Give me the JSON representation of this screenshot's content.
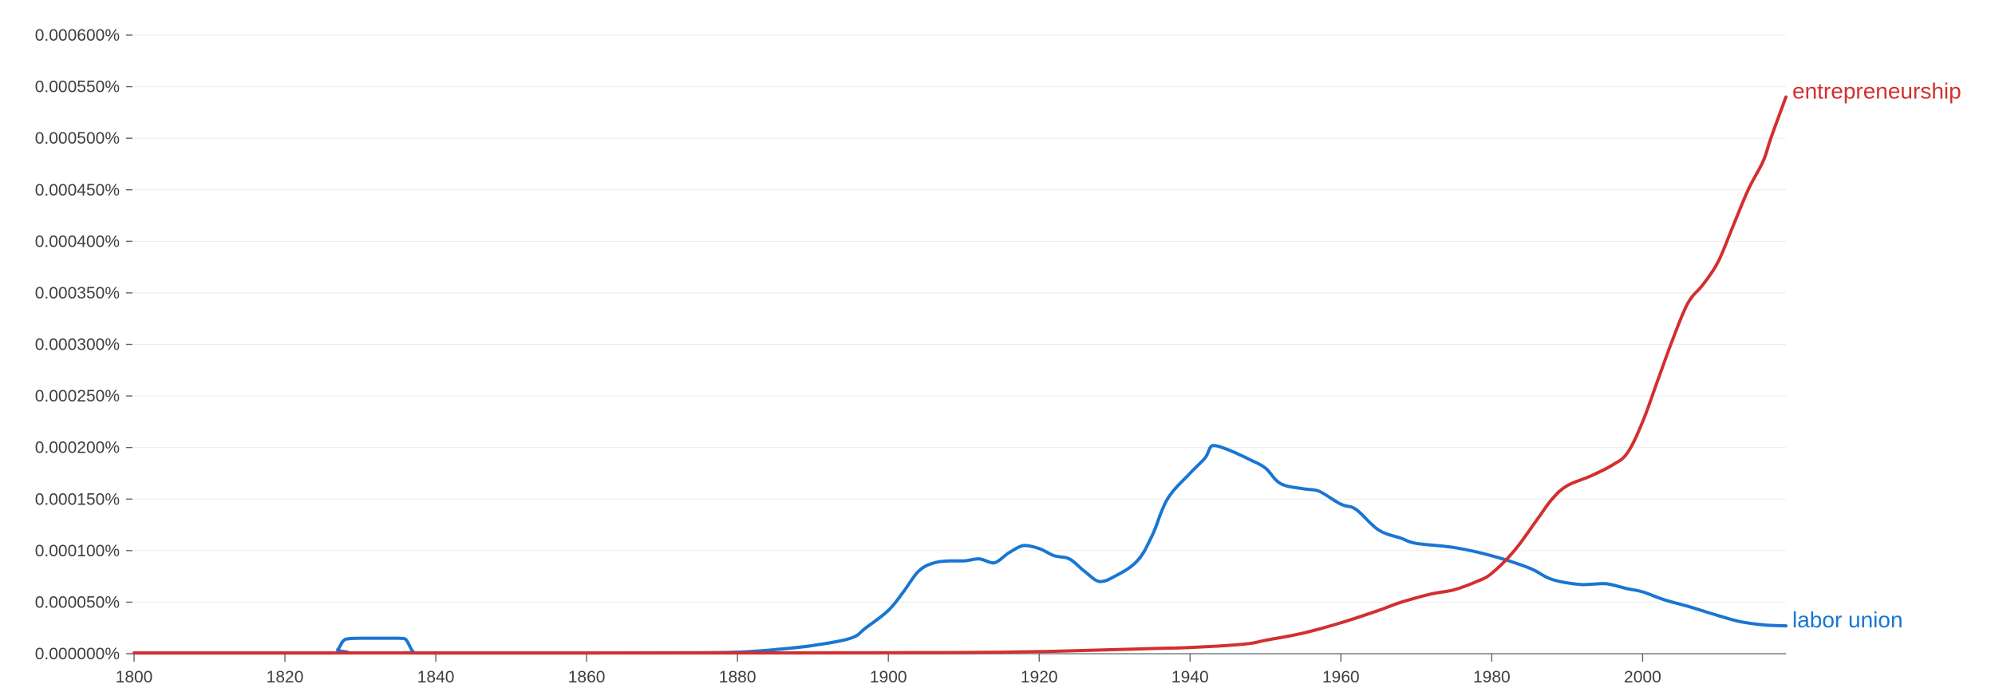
{
  "chart_data": {
    "type": "line",
    "title": "",
    "xlabel": "",
    "ylabel": "",
    "xlim": [
      1800,
      2019
    ],
    "ylim": [
      0,
      0.0006
    ],
    "grid": true,
    "legend": "none",
    "x_ticks": [
      1800,
      1820,
      1840,
      1860,
      1880,
      1900,
      1920,
      1940,
      1960,
      1980,
      2000
    ],
    "x_tick_labels": [
      "1800",
      "1820",
      "1840",
      "1860",
      "1880",
      "1900",
      "1920",
      "1940",
      "1960",
      "1980",
      "2000"
    ],
    "y_ticks": [
      0,
      5e-05,
      0.0001,
      0.00015,
      0.0002,
      0.00025,
      0.0003,
      0.00035,
      0.0004,
      0.00045,
      0.0005,
      0.00055,
      0.0006
    ],
    "y_tick_labels": [
      "0.000000%",
      "0.000050%",
      "0.000100%",
      "0.000150%",
      "0.000200%",
      "0.000250%",
      "0.000300%",
      "0.000350%",
      "0.000400%",
      "0.000450%",
      "0.000500%",
      "0.000550%",
      "0.000600%"
    ],
    "series": [
      {
        "name": "entrepreneurship",
        "color": "#d32f2f",
        "points": [
          [
            1800,
            8e-07
          ],
          [
            1820,
            8e-07
          ],
          [
            1840,
            8e-07
          ],
          [
            1860,
            8e-07
          ],
          [
            1880,
            8e-07
          ],
          [
            1900,
            1e-06
          ],
          [
            1910,
            1.2e-06
          ],
          [
            1920,
            2e-06
          ],
          [
            1930,
            4e-06
          ],
          [
            1935,
            5e-06
          ],
          [
            1940,
            6e-06
          ],
          [
            1945,
            8e-06
          ],
          [
            1948,
            1e-05
          ],
          [
            1950,
            1.3e-05
          ],
          [
            1955,
            2e-05
          ],
          [
            1960,
            3e-05
          ],
          [
            1965,
            4.2e-05
          ],
          [
            1968,
            5e-05
          ],
          [
            1972,
            5.8e-05
          ],
          [
            1975,
            6.2e-05
          ],
          [
            1978,
            7e-05
          ],
          [
            1980,
            7.8e-05
          ],
          [
            1983,
            0.0001
          ],
          [
            1986,
            0.00013
          ],
          [
            1988,
            0.00015
          ],
          [
            1990,
            0.000163
          ],
          [
            1993,
            0.000172
          ],
          [
            1996,
            0.000183
          ],
          [
            1998,
            0.000195
          ],
          [
            2000,
            0.000225
          ],
          [
            2002,
            0.000265
          ],
          [
            2004,
            0.000305
          ],
          [
            2006,
            0.00034
          ],
          [
            2008,
            0.000358
          ],
          [
            2010,
            0.00038
          ],
          [
            2012,
            0.000415
          ],
          [
            2014,
            0.00045
          ],
          [
            2016,
            0.000478
          ],
          [
            2017,
            0.0005
          ],
          [
            2019,
            0.00054
          ]
        ]
      },
      {
        "name": "labor union",
        "color": "#1976d2",
        "points": [
          [
            1800,
            7e-07
          ],
          [
            1826,
            7e-07
          ],
          [
            1827,
            4e-06
          ],
          [
            1828,
            1.4e-05
          ],
          [
            1830,
            1.5e-05
          ],
          [
            1835,
            1.5e-05
          ],
          [
            1836,
            1.4e-05
          ],
          [
            1837,
            2e-06
          ],
          [
            1838,
            7e-07
          ],
          [
            1860,
            7e-07
          ],
          [
            1875,
            1e-06
          ],
          [
            1880,
            1.5e-06
          ],
          [
            1885,
            4e-06
          ],
          [
            1890,
            8e-06
          ],
          [
            1895,
            1.5e-05
          ],
          [
            1897,
            2.5e-05
          ],
          [
            1900,
            4.2e-05
          ],
          [
            1902,
            6e-05
          ],
          [
            1904,
            8e-05
          ],
          [
            1906,
            8.8e-05
          ],
          [
            1908,
            9e-05
          ],
          [
            1910,
            9e-05
          ],
          [
            1912,
            9.2e-05
          ],
          [
            1914,
            8.8e-05
          ],
          [
            1916,
            9.8e-05
          ],
          [
            1918,
            0.000105
          ],
          [
            1920,
            0.000102
          ],
          [
            1922,
            9.5e-05
          ],
          [
            1924,
            9.2e-05
          ],
          [
            1926,
            8e-05
          ],
          [
            1928,
            7e-05
          ],
          [
            1930,
            7.5e-05
          ],
          [
            1933,
            9e-05
          ],
          [
            1935,
            0.000115
          ],
          [
            1937,
            0.00015
          ],
          [
            1940,
            0.000175
          ],
          [
            1942,
            0.00019
          ],
          [
            1943,
            0.000202
          ],
          [
            1945,
            0.000198
          ],
          [
            1948,
            0.000188
          ],
          [
            1950,
            0.00018
          ],
          [
            1952,
            0.000165
          ],
          [
            1955,
            0.00016
          ],
          [
            1957,
            0.000158
          ],
          [
            1960,
            0.000145
          ],
          [
            1962,
            0.00014
          ],
          [
            1965,
            0.00012
          ],
          [
            1968,
            0.000112
          ],
          [
            1970,
            0.000107
          ],
          [
            1975,
            0.000103
          ],
          [
            1980,
            9.5e-05
          ],
          [
            1985,
            8.3e-05
          ],
          [
            1988,
            7.2e-05
          ],
          [
            1992,
            6.7e-05
          ],
          [
            1995,
            6.8e-05
          ],
          [
            1998,
            6.3e-05
          ],
          [
            2000,
            6e-05
          ],
          [
            2003,
            5.2e-05
          ],
          [
            2006,
            4.6e-05
          ],
          [
            2010,
            3.7e-05
          ],
          [
            2013,
            3.1e-05
          ],
          [
            2016,
            2.8e-05
          ],
          [
            2019,
            2.7e-05
          ]
        ]
      }
    ]
  }
}
